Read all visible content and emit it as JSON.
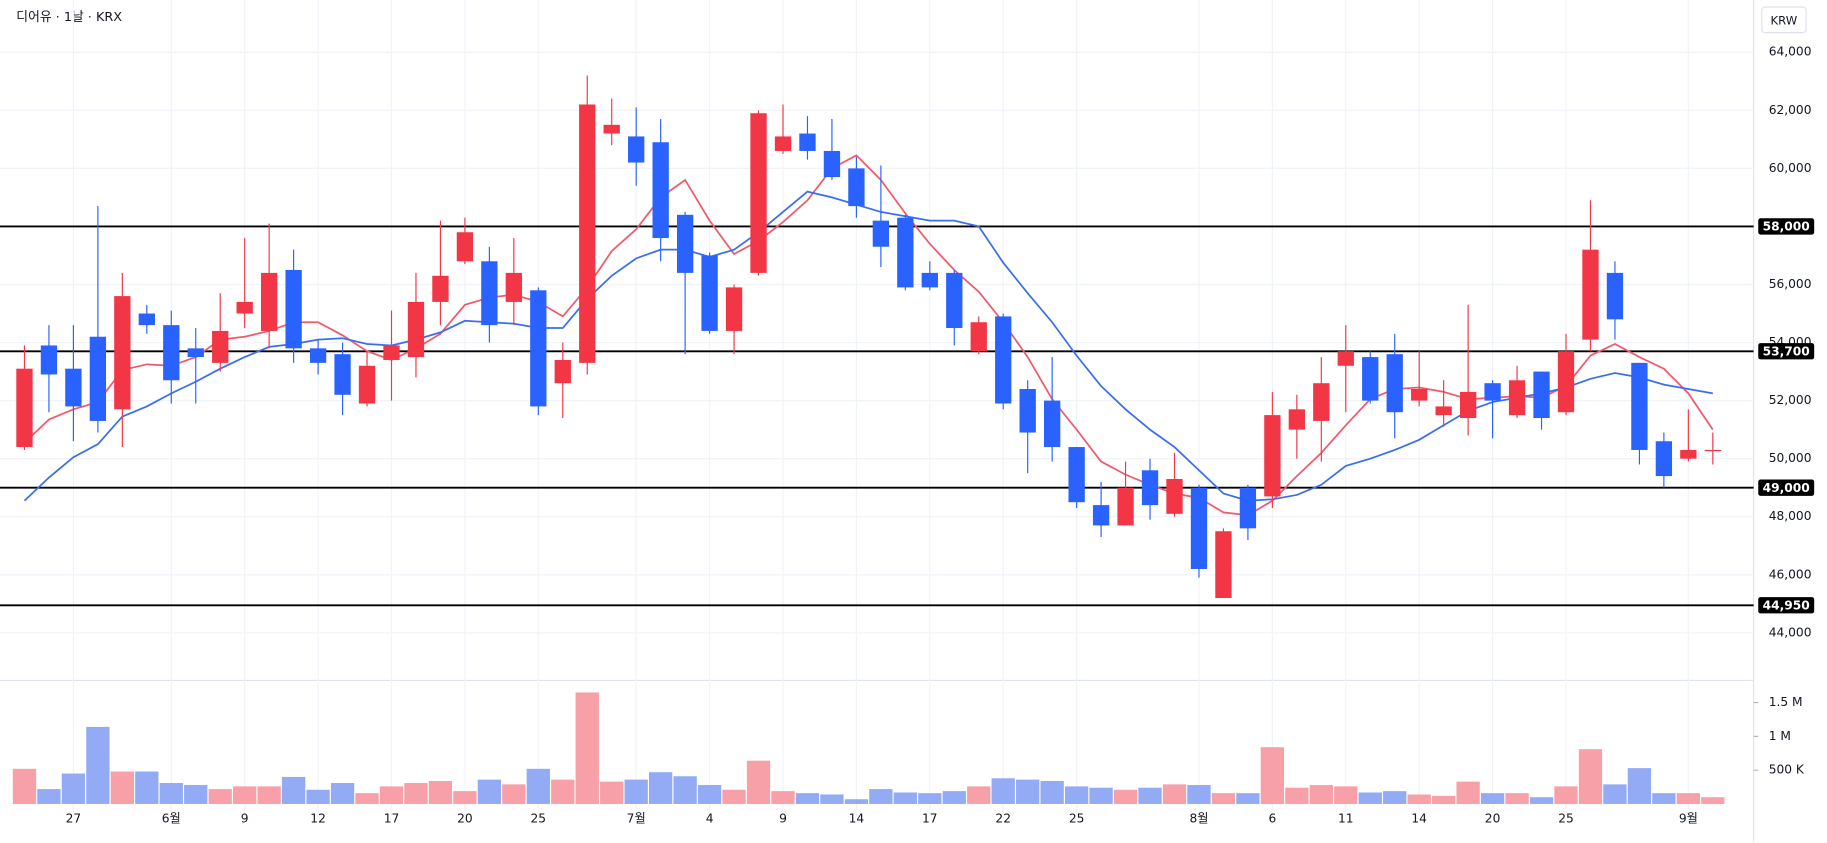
{
  "chart_data": {
    "type": "candlestick",
    "title": "디어유 · 1날 · KRX",
    "currency": "KRW",
    "categories": [
      null,
      null,
      "27",
      null,
      null,
      null,
      "6월",
      null,
      null,
      "9",
      null,
      null,
      "12",
      null,
      null,
      "17",
      null,
      null,
      "20",
      null,
      null,
      "25",
      null,
      null,
      null,
      "7월",
      null,
      null,
      "4",
      null,
      null,
      "9",
      null,
      null,
      "14",
      null,
      null,
      "17",
      null,
      null,
      "22",
      null,
      null,
      "25",
      null,
      null,
      null,
      null,
      "8월",
      null,
      null,
      "6",
      null,
      null,
      "11",
      null,
      null,
      "14",
      null,
      null,
      "20",
      null,
      null,
      "25",
      null,
      null,
      null,
      null,
      "9월",
      null
    ],
    "open": [
      50400,
      53900,
      53100,
      54200,
      51700,
      55000,
      54600,
      53800,
      53300,
      55000,
      54400,
      56500,
      53800,
      53600,
      51900,
      53400,
      53500,
      55400,
      56800,
      56800,
      55400,
      55800,
      52600,
      53300,
      61200,
      61100,
      60900,
      58400,
      57000,
      54400,
      56400,
      60600,
      61200,
      60600,
      60000,
      58200,
      58300,
      56400,
      56400,
      53700,
      54900,
      52400,
      52000,
      50400,
      48400,
      47700,
      49600,
      48100,
      49000,
      45200,
      49000,
      48700,
      51000,
      51300,
      53200,
      53500,
      53600,
      52000,
      51500,
      51400,
      52600,
      51500,
      53000,
      51600,
      54100,
      56400,
      53300,
      50600,
      50000,
      50300
    ],
    "high": [
      53900,
      54600,
      54600,
      58700,
      56400,
      55300,
      55100,
      54500,
      55700,
      57600,
      58100,
      57200,
      54100,
      54000,
      53700,
      55100,
      56400,
      58200,
      58300,
      57300,
      57600,
      55900,
      54000,
      63200,
      62400,
      62100,
      61700,
      58500,
      57100,
      56000,
      62000,
      62200,
      61800,
      61700,
      60400,
      60100,
      58400,
      56800,
      56500,
      54900,
      55000,
      52700,
      53500,
      50400,
      49200,
      49900,
      50000,
      50200,
      49100,
      47600,
      49100,
      52300,
      52200,
      53500,
      54600,
      53700,
      54300,
      53700,
      52700,
      55300,
      52700,
      53200,
      53000,
      54300,
      58900,
      56800,
      53300,
      50900,
      51700,
      50900
    ],
    "low": [
      50300,
      51600,
      50600,
      50900,
      50400,
      54300,
      51900,
      51900,
      53000,
      54500,
      53800,
      53300,
      52900,
      51500,
      51800,
      52000,
      52800,
      54600,
      56700,
      54000,
      54600,
      51500,
      51400,
      52900,
      60800,
      59400,
      56800,
      53600,
      54300,
      53600,
      56300,
      60500,
      60300,
      59600,
      58300,
      56600,
      55800,
      55800,
      53900,
      53600,
      51700,
      49500,
      49900,
      48300,
      47300,
      47700,
      47900,
      48000,
      45900,
      45200,
      47200,
      48300,
      50000,
      49900,
      51600,
      51900,
      50700,
      51800,
      51100,
      50800,
      50700,
      51400,
      51000,
      51500,
      53700,
      54100,
      49800,
      49000,
      49900,
      49800
    ],
    "close": [
      53100,
      52900,
      51800,
      51300,
      55600,
      54600,
      52700,
      53500,
      54400,
      55400,
      56400,
      53800,
      53300,
      52200,
      53200,
      53900,
      55400,
      56300,
      57800,
      54600,
      56400,
      51800,
      53400,
      62200,
      61500,
      60200,
      57600,
      56400,
      54400,
      55900,
      61900,
      61100,
      60600,
      59700,
      58700,
      57300,
      55900,
      55900,
      54500,
      54700,
      51900,
      50900,
      50400,
      48500,
      47700,
      49000,
      48400,
      49300,
      46200,
      47500,
      47600,
      51500,
      51700,
      52600,
      53700,
      52000,
      51600,
      52400,
      51800,
      52300,
      52000,
      52700,
      51400,
      53700,
      57200,
      54800,
      50300,
      49400,
      50300,
      50300
    ],
    "volume": [
      520000,
      220000,
      450000,
      1140000,
      480000,
      480000,
      310000,
      280000,
      220000,
      260000,
      260000,
      400000,
      210000,
      310000,
      160000,
      260000,
      310000,
      340000,
      190000,
      360000,
      290000,
      520000,
      360000,
      1650000,
      330000,
      360000,
      470000,
      410000,
      280000,
      210000,
      640000,
      190000,
      160000,
      140000,
      70000,
      220000,
      170000,
      160000,
      190000,
      260000,
      380000,
      360000,
      340000,
      260000,
      240000,
      210000,
      240000,
      290000,
      280000,
      160000,
      160000,
      840000,
      240000,
      280000,
      260000,
      170000,
      190000,
      140000,
      120000,
      330000,
      160000,
      160000,
      100000,
      260000,
      810000,
      290000,
      530000,
      160000,
      160000,
      100000
    ],
    "series": [
      {
        "color": "#ef5a6b",
        "values": [
          50550,
          51350,
          51700,
          51950,
          53050,
          53250,
          53200,
          53500,
          54100,
          54200,
          54400,
          54700,
          54700,
          54250,
          53700,
          53400,
          53800,
          54300,
          55300,
          55550,
          55650,
          55400,
          54900,
          55900,
          57150,
          57900,
          59000,
          59600,
          58200,
          57050,
          57500,
          58150,
          58900,
          60000,
          60450,
          59600,
          58450,
          57400,
          56500,
          55750,
          54700,
          53500,
          52050,
          51000,
          49900,
          49450,
          49100,
          48800,
          48650,
          48150,
          48050,
          48550,
          49400,
          50200,
          51150,
          52050,
          52400,
          52450,
          52300,
          52050,
          52100,
          52150,
          52100,
          52500,
          53550,
          53950,
          53500,
          53100,
          52250,
          51000
        ]
      },
      {
        "color": "#3a6df0",
        "values": [
          48550,
          49350,
          50050,
          50500,
          51450,
          51800,
          52250,
          52650,
          53100,
          53500,
          53850,
          53950,
          54100,
          54150,
          53950,
          53900,
          54100,
          54350,
          54750,
          54700,
          54650,
          54500,
          54500,
          55500,
          56300,
          56900,
          57200,
          57200,
          56950,
          57200,
          57800,
          58500,
          59200,
          59000,
          58750,
          58500,
          58350,
          58200,
          58200,
          58000,
          56750,
          55700,
          54700,
          53550,
          52500,
          51700,
          51000,
          50400,
          49600,
          48800,
          48550,
          48600,
          48750,
          49100,
          49750,
          50000,
          50300,
          50650,
          51150,
          51650,
          51950,
          52100,
          52250,
          52450,
          52750,
          52950,
          52800,
          52550,
          52400,
          52250
        ]
      }
    ],
    "up_color": "#f23645",
    "down_color": "#2962ff",
    "volume_up_color": "#f7a0a8",
    "volume_down_color": "#93aaf5",
    "ylim": [
      42400,
      65800
    ],
    "yticks": [
      {
        "value": 44000,
        "label": "44,000"
      },
      {
        "value": 46000,
        "label": "46,000"
      },
      {
        "value": 48000,
        "label": "48,000"
      },
      {
        "value": 50000,
        "label": "50,000"
      },
      {
        "value": 52000,
        "label": "52,000"
      },
      {
        "value": 54000,
        "label": "54,000"
      },
      {
        "value": 56000,
        "label": "56,000"
      },
      {
        "value": 58000,
        "label": "58,000"
      },
      {
        "value": 60000,
        "label": "60,000"
      },
      {
        "value": 62000,
        "label": "62,000"
      },
      {
        "value": 64000,
        "label": "64,000"
      }
    ],
    "volume_lim": [
      0,
      1810000
    ],
    "volume_ticks": [
      {
        "value": 500000,
        "label": "500 K"
      },
      {
        "value": 1000000,
        "label": "1 M"
      },
      {
        "value": 1500000,
        "label": "1.5 M"
      }
    ],
    "levels": [
      {
        "value": 58000,
        "label": "58,000"
      },
      {
        "value": 53700,
        "label": "53,700"
      },
      {
        "value": 49000,
        "label": "49,000"
      },
      {
        "value": 44950,
        "label": "44,950"
      }
    ],
    "grid": true
  }
}
